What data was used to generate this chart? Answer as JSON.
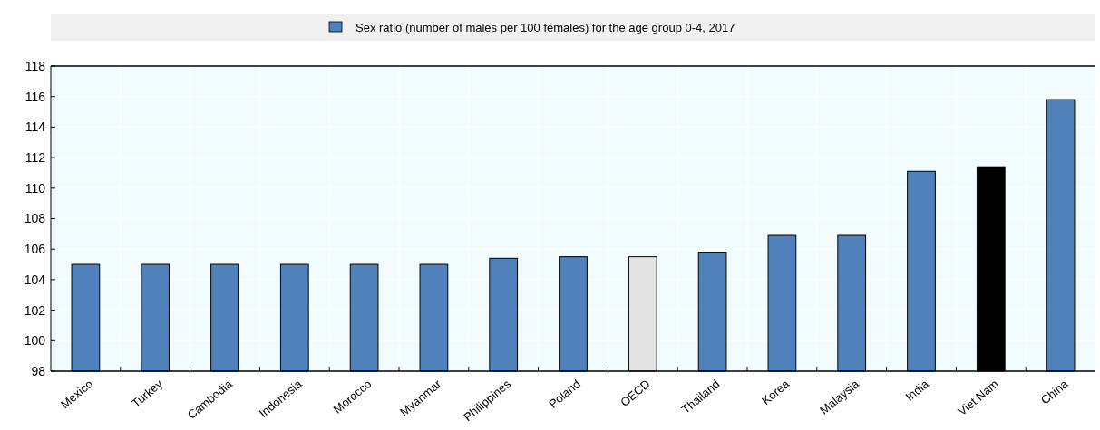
{
  "chart_data": {
    "type": "bar",
    "categories": [
      "Mexico",
      "Turkey",
      "Cambodia",
      "Indonesia",
      "Morocco",
      "Myanmar",
      "Philippines",
      "Poland",
      "OECD",
      "Thailand",
      "Korea",
      "Malaysia",
      "India",
      "Viet Nam",
      "China"
    ],
    "series": [
      {
        "name": "Sex ratio (number of males per 100 females) for the age group 0-4, 2017",
        "color": "#4f81bd",
        "colors": [
          "#4f81bd",
          "#4f81bd",
          "#4f81bd",
          "#4f81bd",
          "#4f81bd",
          "#4f81bd",
          "#4f81bd",
          "#4f81bd",
          "#e3e3e3",
          "#4f81bd",
          "#4f81bd",
          "#4f81bd",
          "#4f81bd",
          "#000000",
          "#4f81bd"
        ],
        "values": [
          105,
          105,
          105,
          105,
          105,
          105,
          105.4,
          105.5,
          105.5,
          105.8,
          106.9,
          106.9,
          111.1,
          111.4,
          115.8
        ]
      }
    ],
    "ylim": [
      98,
      118
    ],
    "yticks": [
      98,
      100,
      102,
      104,
      106,
      108,
      110,
      112,
      114,
      116,
      118
    ],
    "grid": true,
    "legend": "top"
  }
}
